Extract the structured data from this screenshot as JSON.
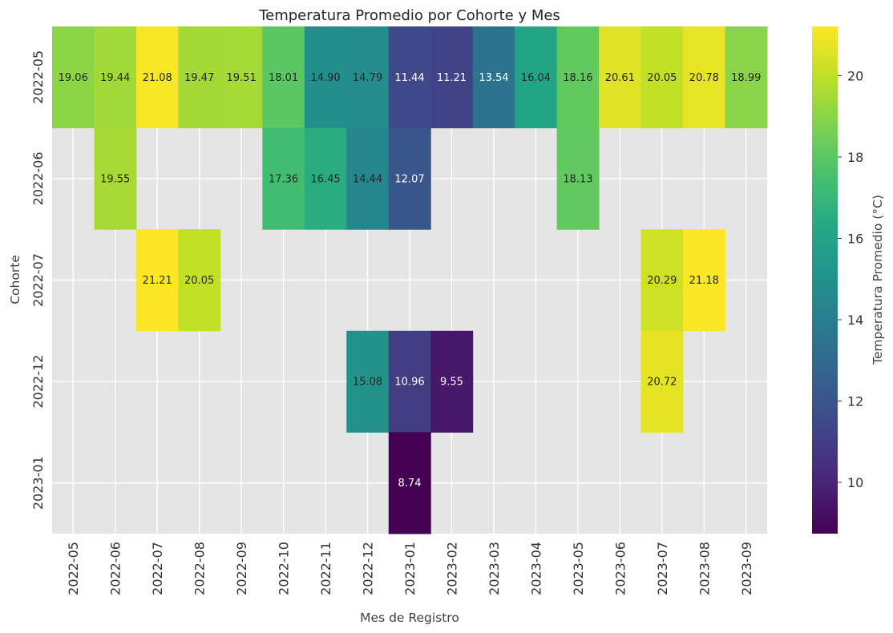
{
  "chart_data": {
    "type": "heatmap",
    "title": "Temperatura Promedio por Cohorte y Mes",
    "xlabel": "Mes de Registro",
    "ylabel": "Cohorte",
    "colorbar_label": "Temperatura Promedio (°C)",
    "colormap": "viridis",
    "missing_color": "#e5e5e5",
    "grid": true,
    "vmin": 8.74,
    "vmax": 21.21,
    "colorbar_ticks": [
      "10",
      "12",
      "14",
      "16",
      "18",
      "20"
    ],
    "x": [
      "2022-05",
      "2022-06",
      "2022-07",
      "2022-08",
      "2022-09",
      "2022-10",
      "2022-11",
      "2022-12",
      "2023-01",
      "2023-02",
      "2023-03",
      "2023-04",
      "2023-05",
      "2023-06",
      "2023-07",
      "2023-08",
      "2023-09"
    ],
    "y": [
      "2022-05",
      "2022-06",
      "2022-07",
      "2022-12",
      "2023-01"
    ],
    "values": [
      [
        19.06,
        19.44,
        21.08,
        19.47,
        19.51,
        18.01,
        14.9,
        14.79,
        11.44,
        11.21,
        13.54,
        16.04,
        18.16,
        20.61,
        20.05,
        20.78,
        18.99
      ],
      [
        null,
        19.55,
        null,
        null,
        null,
        17.36,
        16.45,
        14.44,
        12.07,
        null,
        null,
        null,
        18.13,
        null,
        null,
        null,
        null
      ],
      [
        null,
        null,
        21.21,
        20.05,
        null,
        null,
        null,
        null,
        null,
        null,
        null,
        null,
        null,
        null,
        20.29,
        21.18,
        null
      ],
      [
        null,
        null,
        null,
        null,
        null,
        null,
        null,
        15.08,
        10.96,
        9.55,
        null,
        null,
        null,
        null,
        20.72,
        null,
        null
      ],
      [
        null,
        null,
        null,
        null,
        null,
        null,
        null,
        null,
        8.74,
        null,
        null,
        null,
        null,
        null,
        null,
        null,
        null
      ]
    ],
    "value_labels": [
      [
        "19.06",
        "19.44",
        "21.08",
        "19.47",
        "19.51",
        "18.01",
        "14.90",
        "14.79",
        "11.44",
        "11.21",
        "13.54",
        "16.04",
        "18.16",
        "20.61",
        "20.05",
        "20.78",
        "18.99"
      ],
      [
        null,
        "19.55",
        null,
        null,
        null,
        "17.36",
        "16.45",
        "14.44",
        "12.07",
        null,
        null,
        null,
        "18.13",
        null,
        null,
        null,
        null
      ],
      [
        null,
        null,
        "21.21",
        "20.05",
        null,
        null,
        null,
        null,
        null,
        null,
        null,
        null,
        null,
        null,
        "20.29",
        "21.18",
        null
      ],
      [
        null,
        null,
        null,
        null,
        null,
        null,
        null,
        "15.08",
        "10.96",
        "9.55",
        null,
        null,
        null,
        null,
        "20.72",
        null,
        null
      ],
      [
        null,
        null,
        null,
        null,
        null,
        null,
        null,
        null,
        "8.74",
        null,
        null,
        null,
        null,
        null,
        null,
        null,
        null
      ]
    ]
  }
}
